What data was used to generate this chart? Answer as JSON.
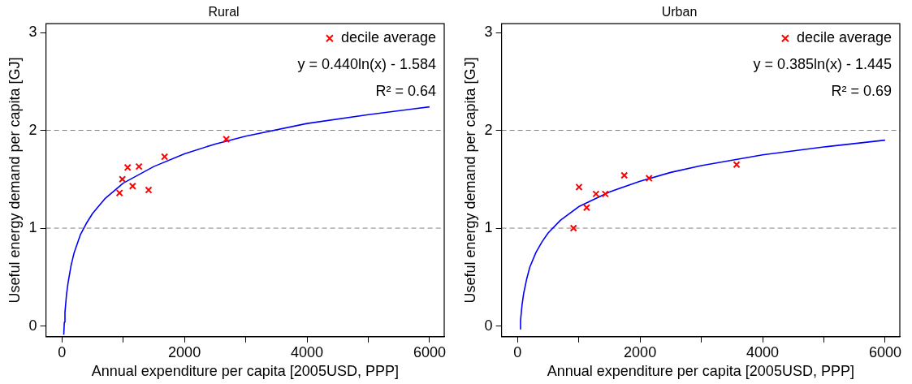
{
  "chart_data": [
    {
      "type": "scatter",
      "title": "Rural",
      "xlabel": "Annual expenditure per capita [2005USD, PPP]",
      "ylabel": "Useful energy demand per capita [GJ]",
      "xlim": [
        -260,
        6240
      ],
      "ylim": [
        -0.11,
        3.09
      ],
      "xticks": [
        0,
        {
          "value": 1000,
          "label": null
        },
        2000,
        {
          "value": 3000,
          "label": null
        },
        4000,
        {
          "value": 5000,
          "label": null
        },
        6000
      ],
      "yticks": [
        0,
        1,
        2,
        3
      ],
      "legend": "top right",
      "series": [
        {
          "name": "decile average",
          "type": "scatter",
          "marker": "cross",
          "color": "#ff0000",
          "x": [
            940,
            987,
            1073,
            1154,
            1258,
            1415,
            1676,
            2683
          ],
          "values": [
            1.36,
            1.5,
            1.62,
            1.43,
            1.63,
            1.39,
            1.73,
            1.91
          ]
        },
        {
          "type": "line",
          "marker": "none",
          "line_style": "solid",
          "color": "#0000ff",
          "x": [
            30,
            40,
            50,
            75,
            100,
            150,
            200,
            300,
            400,
            500,
            700,
            1000,
            1500,
            2000,
            2500,
            3000,
            4000,
            5000,
            6000
          ],
          "values": [
            -0.09,
            0.04,
            0.14,
            0.32,
            0.44,
            0.62,
            0.75,
            0.93,
            1.05,
            1.15,
            1.3,
            1.46,
            1.63,
            1.76,
            1.86,
            1.94,
            2.07,
            2.16,
            2.24
          ]
        }
      ],
      "ref_lines": [
        {
          "axis": "y",
          "value": 1,
          "color": "#808080",
          "line_style": "dashed"
        },
        {
          "axis": "y",
          "value": 2,
          "color": "#808080",
          "line_style": "dashed"
        }
      ],
      "annotations": [
        "y = 0.440ln(x) - 1.584",
        "R² = 0.64"
      ]
    },
    {
      "type": "scatter",
      "title": "Urban",
      "xlabel": "Annual expenditure per capita [2005USD, PPP]",
      "ylabel": "Useful energy demand per capita [GJ]",
      "xlim": [
        -260,
        6240
      ],
      "ylim": [
        -0.11,
        3.09
      ],
      "xticks": [
        0,
        {
          "value": 1000,
          "label": null
        },
        2000,
        {
          "value": 3000,
          "label": null
        },
        4000,
        {
          "value": 5000,
          "label": null
        },
        6000
      ],
      "yticks": [
        0,
        1,
        2,
        3
      ],
      "legend": "top right",
      "series": [
        {
          "name": "decile average",
          "type": "scatter",
          "marker": "cross",
          "color": "#ff0000",
          "x": [
            914,
            1004,
            1129,
            1281,
            1433,
            1743,
            2147,
            3576
          ],
          "values": [
            1.0,
            1.42,
            1.21,
            1.35,
            1.35,
            1.54,
            1.51,
            1.65
          ]
        },
        {
          "type": "line",
          "marker": "none",
          "line_style": "solid",
          "color": "#0000ff",
          "x": [
            40,
            50,
            75,
            100,
            150,
            200,
            300,
            400,
            500,
            700,
            1000,
            1500,
            2000,
            2500,
            3000,
            4000,
            5000,
            6000
          ],
          "values": [
            -0.03,
            0.06,
            0.22,
            0.33,
            0.48,
            0.6,
            0.75,
            0.86,
            0.95,
            1.08,
            1.22,
            1.37,
            1.48,
            1.57,
            1.64,
            1.75,
            1.83,
            1.9
          ]
        }
      ],
      "ref_lines": [
        {
          "axis": "y",
          "value": 1,
          "color": "#808080",
          "line_style": "dashed"
        },
        {
          "axis": "y",
          "value": 2,
          "color": "#808080",
          "line_style": "dashed"
        }
      ],
      "annotations": [
        "y = 0.385ln(x) - 1.445",
        "R² = 0.69"
      ]
    }
  ]
}
